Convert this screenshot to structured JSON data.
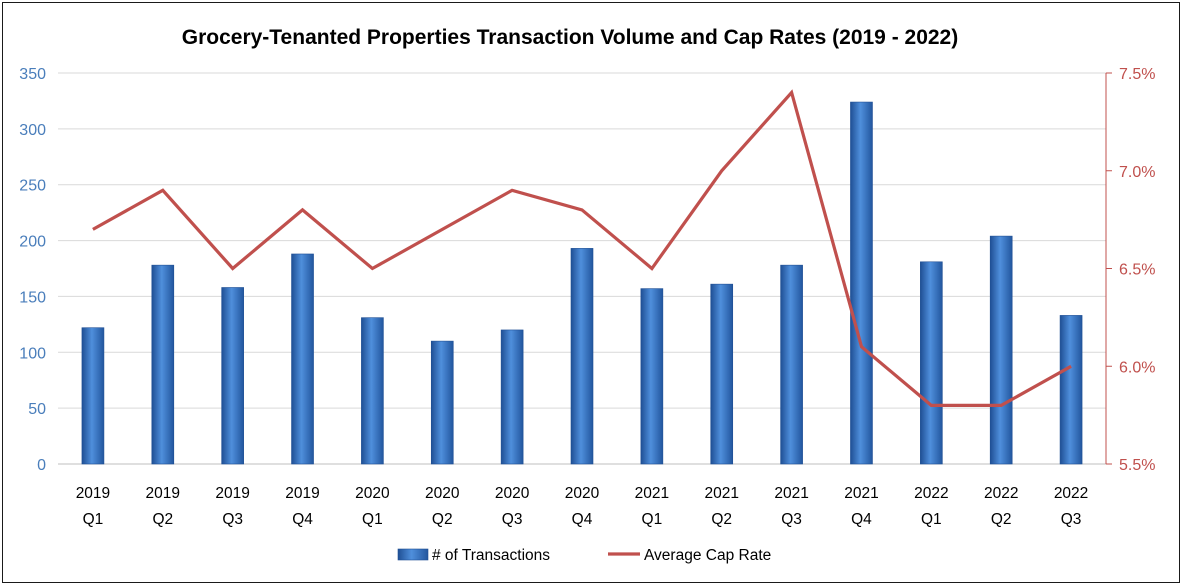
{
  "chart_data": {
    "type": "bar",
    "title": "Grocery-Tenanted Properties Transaction Volume and Cap Rates (2019 - 2022)",
    "categories": [
      [
        "2019",
        "Q1"
      ],
      [
        "2019",
        "Q2"
      ],
      [
        "2019",
        "Q3"
      ],
      [
        "2019",
        "Q4"
      ],
      [
        "2020",
        "Q1"
      ],
      [
        "2020",
        "Q2"
      ],
      [
        "2020",
        "Q3"
      ],
      [
        "2020",
        "Q4"
      ],
      [
        "2021",
        "Q1"
      ],
      [
        "2021",
        "Q2"
      ],
      [
        "2021",
        "Q3"
      ],
      [
        "2021",
        "Q4"
      ],
      [
        "2022",
        "Q1"
      ],
      [
        "2022",
        "Q2"
      ],
      [
        "2022",
        "Q3"
      ]
    ],
    "y_left": {
      "min": 0,
      "max": 350,
      "ticks": [
        "0",
        "50",
        "100",
        "150",
        "200",
        "250",
        "300",
        "350"
      ],
      "tick_values": [
        0,
        50,
        100,
        150,
        200,
        250,
        300,
        350
      ]
    },
    "y_right": {
      "min": 5.5,
      "max": 7.5,
      "ticks": [
        "5.5%",
        "6.0%",
        "6.5%",
        "7.0%",
        "7.5%"
      ],
      "tick_values": [
        5.5,
        6.0,
        6.5,
        7.0,
        7.5
      ]
    },
    "series": [
      {
        "name": "# of Transactions",
        "type": "bar",
        "axis": "left",
        "color": "#3a78c9",
        "values": [
          122,
          178,
          158,
          188,
          131,
          110,
          120,
          193,
          157,
          161,
          178,
          324,
          181,
          204,
          133
        ]
      },
      {
        "name": "Average  Cap Rate",
        "type": "line",
        "axis": "right",
        "color": "#c0504d",
        "values": [
          6.7,
          6.9,
          6.5,
          6.8,
          6.5,
          6.7,
          6.9,
          6.8,
          6.5,
          7.0,
          7.4,
          6.1,
          5.8,
          5.8,
          6.0
        ]
      }
    ],
    "grid": true,
    "legend_position": "bottom"
  }
}
